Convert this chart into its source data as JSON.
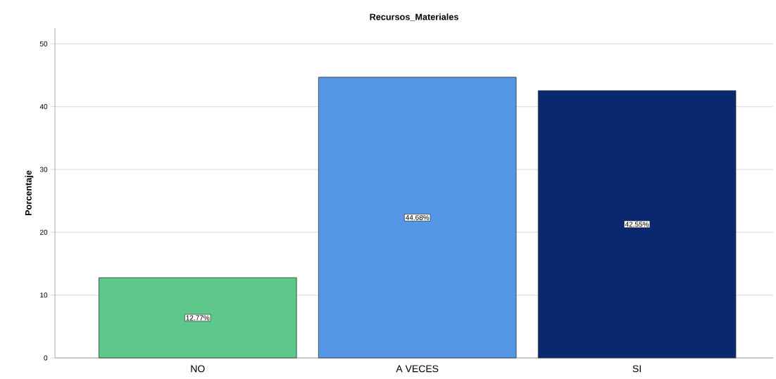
{
  "chart_data": {
    "type": "bar",
    "title": "Recursos_Materiales",
    "ylabel": "Porcentaje",
    "categories": [
      "NO",
      "A VECES",
      "SI"
    ],
    "values": [
      12.77,
      44.68,
      42.55
    ],
    "colors": [
      "#5ec88a",
      "#5596e6",
      "#0a2870"
    ],
    "value_labels": [
      "12.77%",
      "44.68%",
      "42.55%"
    ],
    "ylim": [
      0,
      52.5
    ],
    "yticks": [
      0,
      10,
      20,
      30,
      40,
      50
    ],
    "grid": "y"
  }
}
